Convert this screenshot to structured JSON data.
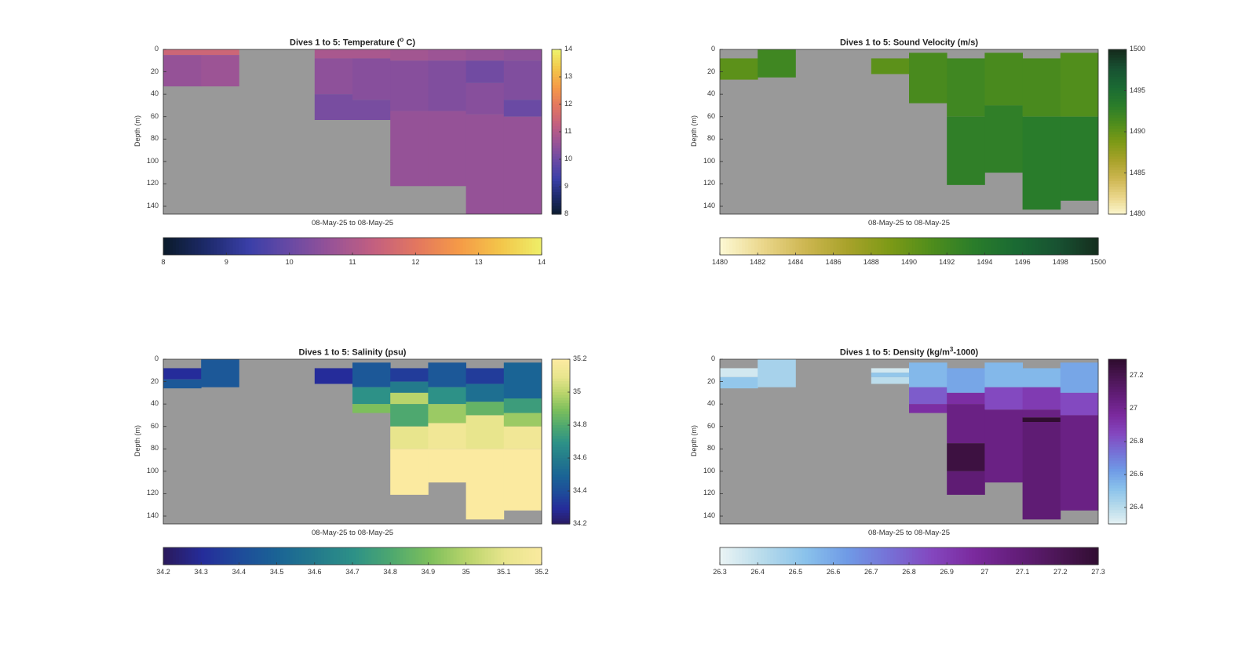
{
  "figure": {
    "panels": [
      {
        "id": "temperature",
        "title_main": "Dives 1 to 5: Temperature (",
        "title_sup": "o",
        "title_end": " C)",
        "ylabel": "Depth (m)",
        "xlabel": "08-May-25 to 08-May-25",
        "colorbar_ticks": [
          "14",
          "13",
          "12",
          "11",
          "10",
          "9",
          "8"
        ],
        "hbar_ticks": [
          "8",
          "9",
          "10",
          "11",
          "12",
          "13",
          "14"
        ],
        "colormap": [
          "#0b1b2c",
          "#1d2a6b",
          "#3a3fa8",
          "#6a4aa4",
          "#9a5396",
          "#c4607f",
          "#e3775f",
          "#f59a47",
          "#f3c64a",
          "#eef06a"
        ],
        "missing_color": "#999999"
      },
      {
        "id": "sound-velocity",
        "title_main": "Dives 1 to 5: Sound Velocity (m/s)",
        "title_sup": "",
        "title_end": "",
        "ylabel": "Depth (m)",
        "xlabel": "08-May-25 to 08-May-25",
        "colorbar_ticks": [
          "1500",
          "1495",
          "1490",
          "1485",
          "1480"
        ],
        "hbar_ticks": [
          "1480",
          "1482",
          "1484",
          "1486",
          "1488",
          "1490",
          "1492",
          "1494",
          "1496",
          "1498",
          "1500"
        ],
        "colormap": [
          "#fcf8d2",
          "#ead68a",
          "#cdb651",
          "#a8a22a",
          "#7d9a16",
          "#4f8d1c",
          "#2a7d2a",
          "#1a6a33",
          "#185232",
          "#152c1d"
        ],
        "missing_color": "#999999"
      },
      {
        "id": "salinity",
        "title_main": "Dives 1 to 5: Salinity (psu)",
        "title_sup": "",
        "title_end": "",
        "ylabel": "Depth (m)",
        "xlabel": "08-May-25 to 08-May-25",
        "colorbar_ticks": [
          "35.2",
          "35",
          "34.8",
          "34.6",
          "34.4",
          "34.2"
        ],
        "hbar_ticks": [
          "34.2",
          "34.3",
          "34.4",
          "34.5",
          "34.6",
          "34.7",
          "34.8",
          "34.9",
          "35",
          "35.1",
          "35.2"
        ],
        "colormap": [
          "#2a1a5e",
          "#252c9a",
          "#1e4c9a",
          "#1a6495",
          "#237a8c",
          "#2d9187",
          "#4ea86f",
          "#7dbf5c",
          "#b9d46b",
          "#e8e58d",
          "#fbeaa0"
        ],
        "missing_color": "#999999"
      },
      {
        "id": "density",
        "title_main": "Dives 1 to 5: Density (kg/m",
        "title_sup": "3",
        "title_end": "-1000)",
        "ylabel": "Depth (m)",
        "xlabel": "08-May-25 to 08-May-25",
        "colorbar_ticks": [
          "27.2",
          "27",
          "26.8",
          "26.6",
          "26.4"
        ],
        "hbar_ticks": [
          "26.3",
          "26.4",
          "26.5",
          "26.6",
          "26.7",
          "26.8",
          "26.9",
          "27",
          "27.1",
          "27.2",
          "27.3"
        ],
        "colormap": [
          "#e9f3f4",
          "#b7dbeb",
          "#8ac2eb",
          "#6f9ae6",
          "#7670d6",
          "#8447bf",
          "#7b2a9e",
          "#641e7b",
          "#4c1656",
          "#300d30"
        ],
        "missing_color": "#999999"
      }
    ],
    "yticks": [
      "0",
      "20",
      "40",
      "60",
      "80",
      "100",
      "120",
      "140"
    ]
  },
  "chart_data": [
    {
      "type": "heatmap",
      "title": "Dives 1 to 5: Temperature (o C)",
      "xlabel": "08-May-25 to 08-May-25",
      "ylabel": "Depth (m)",
      "ylim": [
        0,
        147
      ],
      "clim": [
        8,
        14
      ],
      "colorbar": "right and bottom",
      "columns": [
        {
          "segments": [
            [
              0,
              5,
              11.5
            ],
            [
              5,
              33,
              10.6
            ]
          ]
        },
        {
          "segments": [
            [
              0,
              5,
              11.5
            ],
            [
              5,
              33,
              10.7
            ]
          ]
        },
        {
          "segments": []
        },
        {
          "segments": []
        },
        {
          "segments": [
            [
              0,
              8,
              10.9
            ],
            [
              8,
              40,
              10.5
            ],
            [
              40,
              63,
              10.2
            ]
          ]
        },
        {
          "segments": [
            [
              0,
              8,
              10.9
            ],
            [
              8,
              45,
              10.4
            ],
            [
              45,
              63,
              10.2
            ]
          ]
        },
        {
          "segments": [
            [
              0,
              10,
              10.8
            ],
            [
              10,
              55,
              10.4
            ],
            [
              55,
              122,
              10.6
            ]
          ]
        },
        {
          "segments": [
            [
              0,
              10,
              10.7
            ],
            [
              10,
              55,
              10.3
            ],
            [
              55,
              122,
              10.6
            ]
          ]
        },
        {
          "segments": [
            [
              0,
              10,
              10.6
            ],
            [
              10,
              30,
              10.1
            ],
            [
              30,
              58,
              10.4
            ],
            [
              58,
              147,
              10.6
            ]
          ]
        },
        {
          "segments": [
            [
              0,
              10,
              10.5
            ],
            [
              10,
              45,
              10.3
            ],
            [
              45,
              60,
              10.0
            ],
            [
              60,
              147,
              10.6
            ]
          ]
        }
      ]
    },
    {
      "type": "heatmap",
      "title": "Dives 1 to 5: Sound Velocity (m/s)",
      "xlabel": "08-May-25 to 08-May-25",
      "ylabel": "Depth (m)",
      "ylim": [
        0,
        147
      ],
      "clim": [
        1480,
        1500
      ],
      "colorbar": "right and bottom",
      "columns": [
        {
          "segments": [
            [
              8,
              27,
              1490.5
            ]
          ]
        },
        {
          "segments": [
            [
              0,
              25,
              1492
            ]
          ]
        },
        {
          "segments": []
        },
        {
          "segments": []
        },
        {
          "segments": [
            [
              8,
              22,
              1490.5
            ]
          ]
        },
        {
          "segments": [
            [
              3,
              48,
              1491.5
            ]
          ]
        },
        {
          "segments": [
            [
              8,
              60,
              1492
            ],
            [
              60,
              121,
              1493
            ]
          ]
        },
        {
          "segments": [
            [
              3,
              50,
              1491.5
            ],
            [
              50,
              110,
              1493
            ]
          ]
        },
        {
          "segments": [
            [
              8,
              60,
              1491.5
            ],
            [
              60,
              143,
              1493.5
            ]
          ]
        },
        {
          "segments": [
            [
              3,
              60,
              1491
            ],
            [
              60,
              135,
              1493.5
            ]
          ]
        }
      ]
    },
    {
      "type": "heatmap",
      "title": "Dives 1 to 5: Salinity (psu)",
      "xlabel": "08-May-25 to 08-May-25",
      "ylabel": "Depth (m)",
      "ylim": [
        0,
        147
      ],
      "clim": [
        34.2,
        35.2
      ],
      "colorbar": "right and bottom",
      "columns": [
        {
          "segments": [
            [
              8,
              18,
              34.3
            ],
            [
              18,
              26,
              34.45
            ]
          ]
        },
        {
          "segments": [
            [
              0,
              25,
              34.45
            ]
          ]
        },
        {
          "segments": []
        },
        {
          "segments": []
        },
        {
          "segments": [
            [
              8,
              22,
              34.3
            ]
          ]
        },
        {
          "segments": [
            [
              3,
              25,
              34.45
            ],
            [
              25,
              40,
              34.7
            ],
            [
              40,
              48,
              34.9
            ]
          ]
        },
        {
          "segments": [
            [
              8,
              20,
              34.35
            ],
            [
              20,
              30,
              34.6
            ],
            [
              30,
              40,
              35.0
            ],
            [
              40,
              60,
              34.8
            ],
            [
              60,
              80,
              35.1
            ],
            [
              80,
              121,
              35.2
            ]
          ]
        },
        {
          "segments": [
            [
              3,
              25,
              34.45
            ],
            [
              25,
              40,
              34.7
            ],
            [
              40,
              57,
              34.95
            ],
            [
              57,
              80,
              35.15
            ],
            [
              80,
              110,
              35.2
            ]
          ]
        },
        {
          "segments": [
            [
              8,
              22,
              34.35
            ],
            [
              22,
              38,
              34.55
            ],
            [
              38,
              50,
              34.85
            ],
            [
              50,
              80,
              35.1
            ],
            [
              80,
              143,
              35.2
            ]
          ]
        },
        {
          "segments": [
            [
              3,
              35,
              34.5
            ],
            [
              35,
              48,
              34.75
            ],
            [
              48,
              60,
              34.95
            ],
            [
              60,
              80,
              35.15
            ],
            [
              80,
              135,
              35.2
            ]
          ]
        }
      ]
    },
    {
      "type": "heatmap",
      "title": "Dives 1 to 5: Density (kg/m3-1000)",
      "xlabel": "08-May-25 to 08-May-25",
      "ylabel": "Depth (m)",
      "ylim": [
        0,
        147
      ],
      "clim": [
        26.3,
        27.3
      ],
      "colorbar": "right and bottom",
      "columns": [
        {
          "segments": [
            [
              8,
              16,
              26.35
            ],
            [
              16,
              26,
              26.5
            ]
          ]
        },
        {
          "segments": [
            [
              0,
              25,
              26.45
            ]
          ]
        },
        {
          "segments": []
        },
        {
          "segments": []
        },
        {
          "segments": [
            [
              8,
              12,
              26.35
            ],
            [
              12,
              16,
              26.5
            ],
            [
              16,
              22,
              26.4
            ]
          ]
        },
        {
          "segments": [
            [
              3,
              25,
              26.55
            ],
            [
              25,
              40,
              26.8
            ],
            [
              40,
              48,
              26.95
            ]
          ]
        },
        {
          "segments": [
            [
              8,
              30,
              26.6
            ],
            [
              30,
              40,
              26.95
            ],
            [
              40,
              75,
              27.05
            ],
            [
              75,
              100,
              27.25
            ],
            [
              100,
              121,
              27.1
            ]
          ]
        },
        {
          "segments": [
            [
              3,
              25,
              26.55
            ],
            [
              25,
              45,
              26.85
            ],
            [
              45,
              110,
              27.05
            ]
          ]
        },
        {
          "segments": [
            [
              8,
              25,
              26.55
            ],
            [
              25,
              45,
              26.9
            ],
            [
              45,
              52,
              27.05
            ],
            [
              52,
              56,
              27.3
            ],
            [
              56,
              143,
              27.1
            ]
          ]
        },
        {
          "segments": [
            [
              3,
              30,
              26.6
            ],
            [
              30,
              50,
              26.85
            ],
            [
              50,
              135,
              27.05
            ]
          ]
        }
      ]
    }
  ]
}
